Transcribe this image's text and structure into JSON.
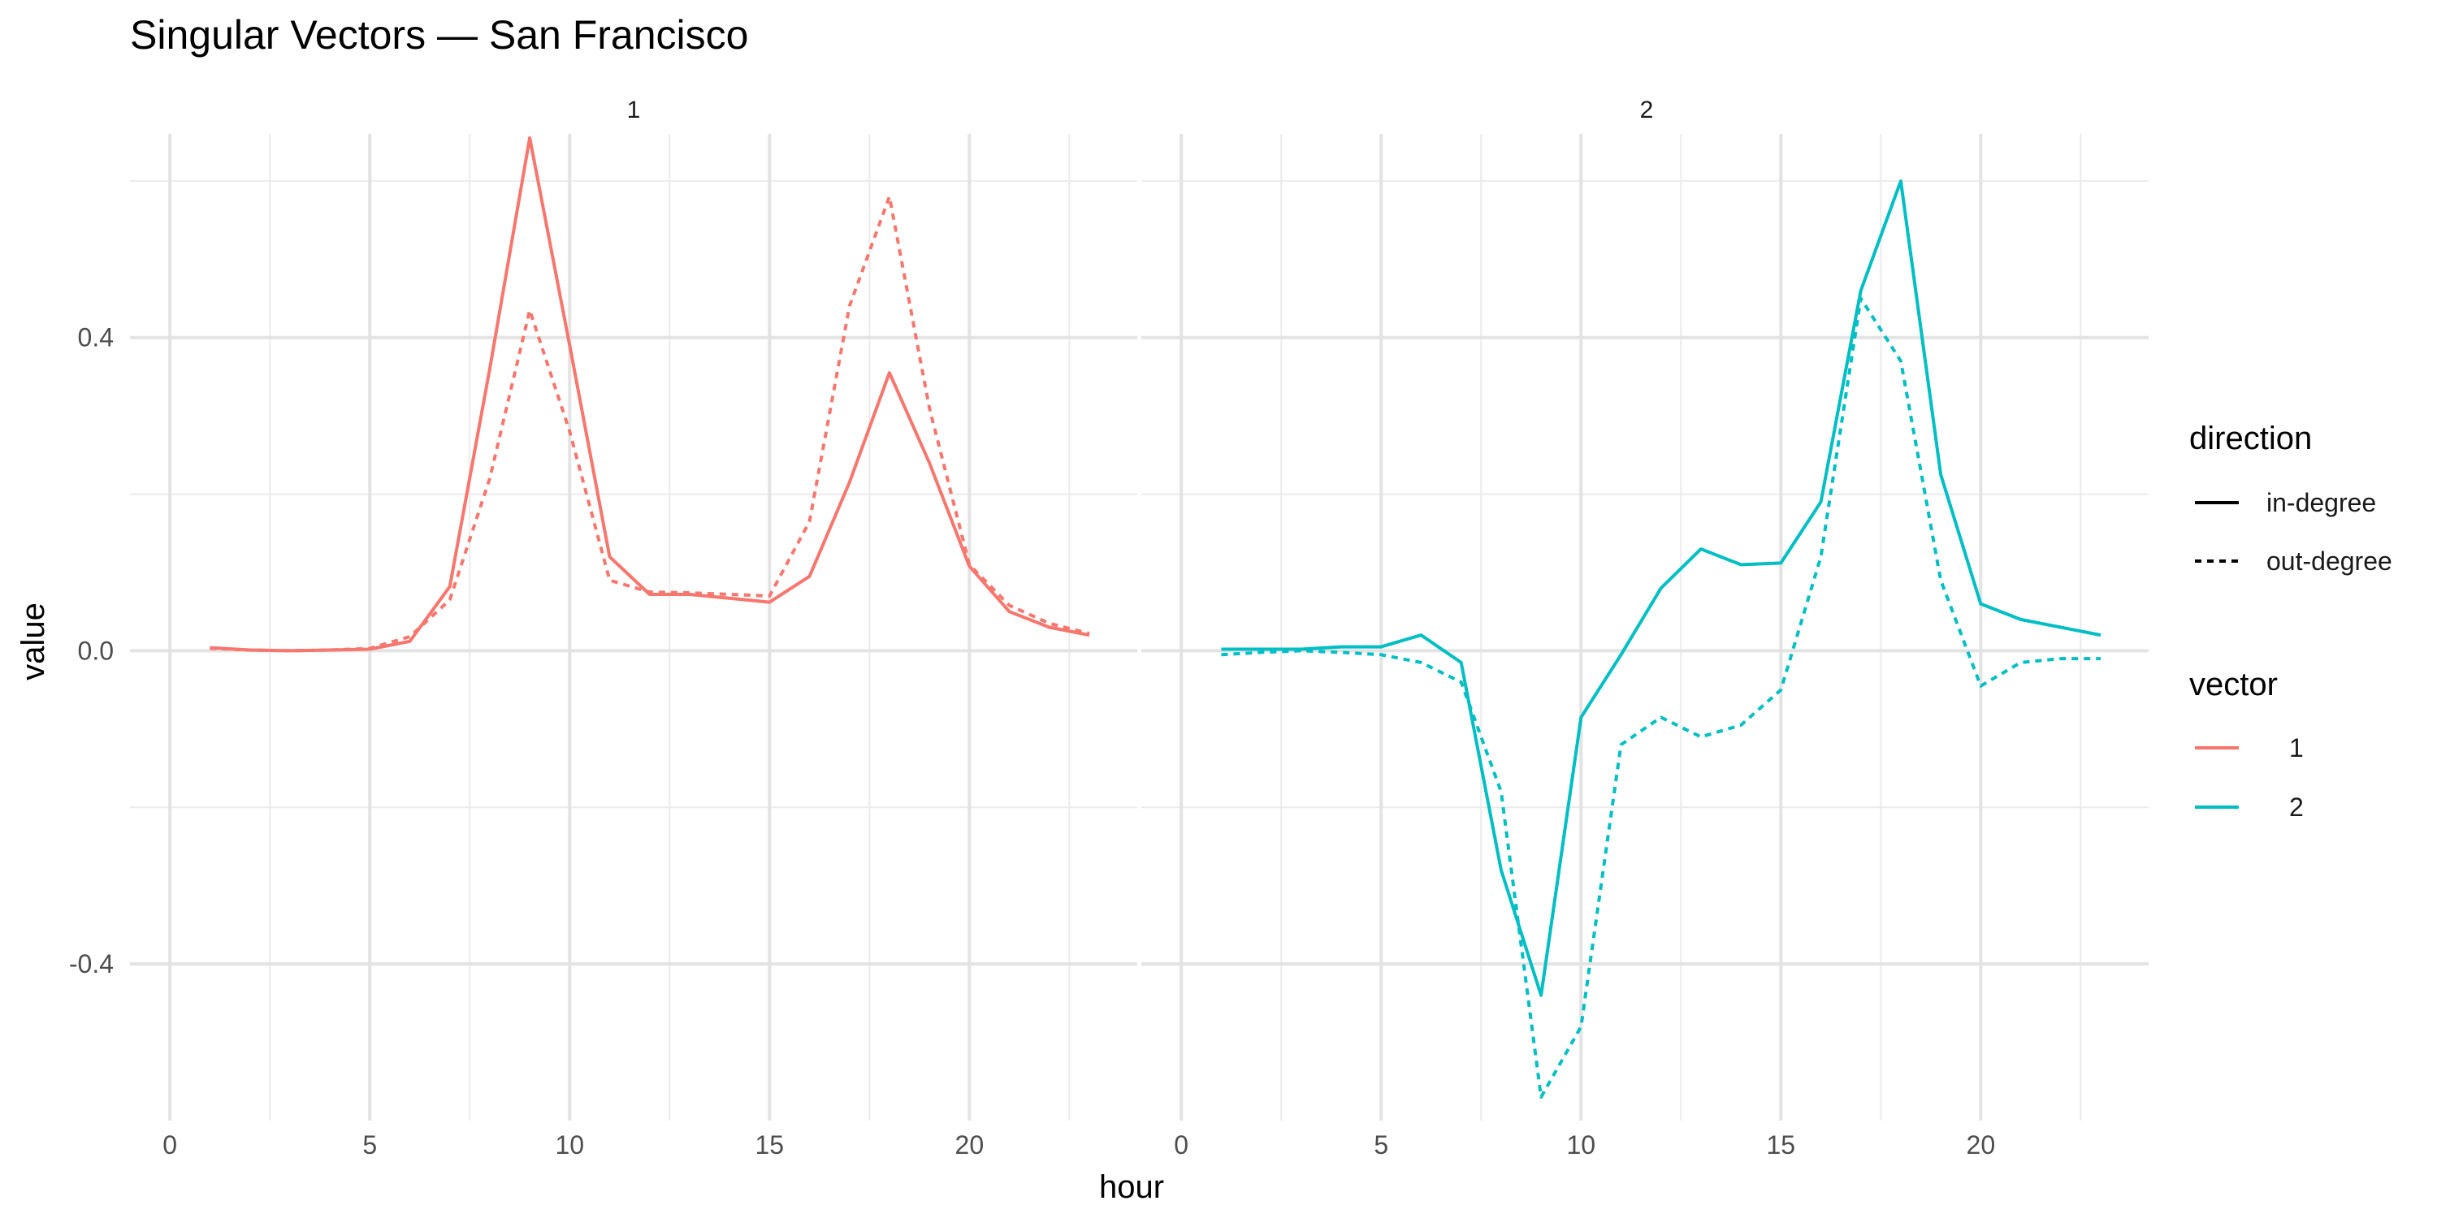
{
  "chart_data": {
    "type": "line",
    "title": "Singular Vectors — San Francisco",
    "xlabel": "hour",
    "ylabel": "value",
    "xlim": [
      -1.0,
      24.2
    ],
    "ylim": [
      -0.6,
      0.66
    ],
    "x_ticks": [
      0,
      5,
      10,
      15,
      20
    ],
    "x_tick_labels": [
      "0",
      "5",
      "10",
      "15",
      "20"
    ],
    "y_ticks": [
      -0.4,
      0.0,
      0.4
    ],
    "y_tick_labels": [
      "-0.4",
      "0.0",
      "0.4"
    ],
    "grid": true,
    "facets": [
      "1",
      "2"
    ],
    "x": [
      1,
      2,
      3,
      4,
      5,
      6,
      7,
      8,
      9,
      10,
      11,
      12,
      13,
      14,
      15,
      16,
      17,
      18,
      19,
      20,
      21,
      22,
      23
    ],
    "series": [
      {
        "facet": "1",
        "vector": "1",
        "direction": "in-degree",
        "color": "#F8766D",
        "dash": "solid",
        "values": [
          0.004,
          0.001,
          0.0,
          0.001,
          0.002,
          0.012,
          0.082,
          0.36,
          0.655,
          0.39,
          0.12,
          0.072,
          0.072,
          0.067,
          0.062,
          0.095,
          0.215,
          0.355,
          0.24,
          0.108,
          0.05,
          0.03,
          0.02
        ]
      },
      {
        "facet": "1",
        "vector": "1",
        "direction": "out-degree",
        "color": "#F8766D",
        "dash": "dashed",
        "values": [
          0.003,
          0.001,
          0.0,
          0.001,
          0.003,
          0.018,
          0.065,
          0.22,
          0.435,
          0.28,
          0.09,
          0.075,
          0.074,
          0.072,
          0.07,
          0.165,
          0.44,
          0.58,
          0.31,
          0.11,
          0.058,
          0.035,
          0.022
        ]
      },
      {
        "facet": "2",
        "vector": "2",
        "direction": "in-degree",
        "color": "#00BFC4",
        "dash": "solid",
        "values": [
          0.002,
          0.002,
          0.002,
          0.005,
          0.005,
          0.02,
          -0.015,
          -0.28,
          -0.44,
          -0.085,
          -0.005,
          0.08,
          0.13,
          0.11,
          0.112,
          0.19,
          0.46,
          0.6,
          0.225,
          0.06,
          0.04,
          0.03,
          0.02
        ]
      },
      {
        "facet": "2",
        "vector": "2",
        "direction": "out-degree",
        "color": "#00BFC4",
        "dash": "dashed",
        "values": [
          -0.005,
          -0.002,
          0.0,
          -0.002,
          -0.005,
          -0.015,
          -0.04,
          -0.18,
          -0.57,
          -0.48,
          -0.12,
          -0.085,
          -0.11,
          -0.095,
          -0.05,
          0.12,
          0.45,
          0.37,
          0.09,
          -0.045,
          -0.015,
          -0.01,
          -0.01
        ]
      }
    ],
    "legend": {
      "placement": "right",
      "groups": [
        {
          "title": "direction",
          "items": [
            {
              "label": "in-degree",
              "dash": "solid",
              "color": "#000000"
            },
            {
              "label": "out-degree",
              "dash": "dashed",
              "color": "#000000"
            }
          ]
        },
        {
          "title": "vector",
          "items": [
            {
              "label": "1",
              "dash": "solid",
              "color": "#F8766D"
            },
            {
              "label": "2",
              "dash": "solid",
              "color": "#00BFC4"
            }
          ]
        }
      ]
    }
  }
}
